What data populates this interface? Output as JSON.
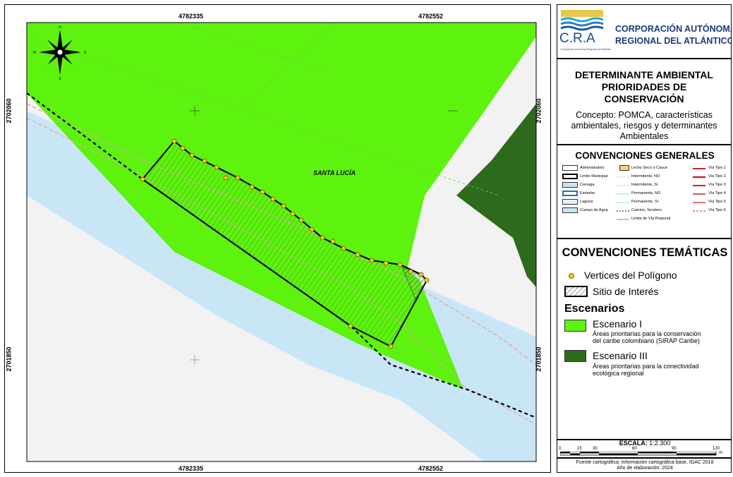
{
  "map": {
    "coords_top": [
      "4782335",
      "4782552"
    ],
    "coords_bottom": [
      "4782335",
      "4782552"
    ],
    "coords_left": [
      "2702060",
      "2701850"
    ],
    "coords_right": [
      "2702060",
      "2701850"
    ],
    "place_label": "SANTA LUCÍA",
    "north_arrow": {
      "n": "N",
      "s": "S",
      "e": "E",
      "w": "W"
    },
    "colors": {
      "scenario1": "#5ef20f",
      "scenario3": "#2d6a1c",
      "water": "#c9e6f7",
      "background": "#f2f2f2"
    }
  },
  "header": {
    "logo_letters": "C.R.A",
    "logo_caption": "Corporación Autónoma Regional del Atlántico",
    "org_line1": "CORPORACIÓN AUTÓNOMA",
    "org_line2": "REGIONAL DEL ATLÁNTICO"
  },
  "title_box": {
    "title_lines": [
      "DETERMINANTE AMBIENTAL",
      "PRIORIDADES DE",
      "CONSERVACIÓN"
    ],
    "concept_lines": [
      "Concepto: POMCA, características",
      "ambientales, riesgos y determinantes",
      "Ambientales"
    ]
  },
  "general": {
    "title": "CONVENCIONES GENERALES",
    "col1": [
      "Administrativo",
      "Limite Municipal",
      "Cienaga",
      "Embalse",
      "Laguna",
      "Cuerpo de Agua"
    ],
    "col2": [
      "Lecho Seco o Cauce",
      "Intermitente, NO",
      "Intermitente, SI",
      "Permanente, NO",
      "Permanente, SI",
      "Camino, Sendero",
      "Limite de Vía Peatonal"
    ],
    "col3": [
      "Vía Tipo 1",
      "Vía Tipo 2",
      "Vía Tipo 3",
      "Vía Tipo 4",
      "Vía Tipo 5",
      "Vía Tipo 6"
    ]
  },
  "thematic": {
    "title": "CONVENCIONES TEMÁTICAS",
    "vertices_label": "Vertices del Polígono",
    "site_label": "Sitio de Interés",
    "scenarios_title": "Escenarios",
    "scenario1_label": "Escenario I",
    "scenario1_desc": [
      "Áreas prioritarias para la conservación",
      "del caribe colombiano (SIRAP Caribe)"
    ],
    "scenario3_label": "Escenario III",
    "scenario3_desc": [
      "Áreas prioritarias para la conectividad",
      "ecológica regional"
    ]
  },
  "scale": {
    "label": "ESCALA:",
    "value": "1:2.300",
    "ticks": [
      "0",
      "15",
      "30",
      "60",
      "90",
      "120"
    ],
    "unit": "m"
  },
  "footer": {
    "source": "Fuente cartográfica: Información cartográfica base, IGAC 2018",
    "year": "Año de elaboración: 2024"
  }
}
